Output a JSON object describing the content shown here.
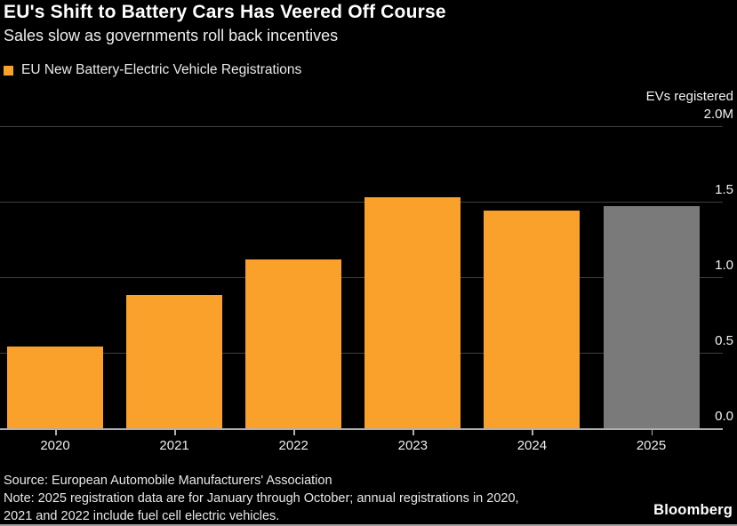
{
  "header": {
    "title": "EU's Shift to Battery Cars Has Veered Off Course",
    "subtitle": "Sales slow as governments roll back incentives"
  },
  "legend": {
    "label": "EU New Battery-Electric Vehicle Registrations",
    "swatch_color": "#F9A12B"
  },
  "axis": {
    "unit_label": "EVs registered",
    "top_tick_label": "2.0M",
    "tick_labels": [
      {
        "label": "1.5",
        "value": 1.5
      },
      {
        "label": "1.0",
        "value": 1.0
      },
      {
        "label": "0.5",
        "value": 0.5
      },
      {
        "label": "0.0",
        "value": 0.0
      }
    ]
  },
  "chart_data": {
    "type": "bar",
    "title": "EU New Battery-Electric Vehicle Registrations",
    "categories": [
      "2020",
      "2021",
      "2022",
      "2023",
      "2024",
      "2025"
    ],
    "values": [
      0.54,
      0.88,
      1.12,
      1.53,
      1.44,
      1.47
    ],
    "unit": "millions of EVs registered",
    "ylabel": "EVs registered",
    "ylim": [
      0,
      2.0
    ],
    "gridlines": [
      0.5,
      1.0,
      1.5,
      2.0
    ],
    "bar_colors": [
      "#F9A12B",
      "#F9A12B",
      "#F9A12B",
      "#F9A12B",
      "#F9A12B",
      "#7A7A7A"
    ],
    "legend_position": "top-left",
    "grid": "horizontal",
    "note": "2025 bar shown in gray (partial-year data, January through October)"
  },
  "footer": {
    "source": "Source: European Automobile Manufacturers' Association",
    "note_line1": "Note: 2025 registration data are for January through October; annual registrations in 2020,",
    "note_line2": "2021 and 2022 include fuel cell electric vehicles.",
    "brand": "Bloomberg"
  },
  "colors": {
    "background": "#000000",
    "bar_orange": "#F9A12B",
    "bar_gray": "#7A7A7A",
    "gridline": "#3f3f3f",
    "baseline": "#b0b0b0",
    "text": "#ffffff"
  }
}
